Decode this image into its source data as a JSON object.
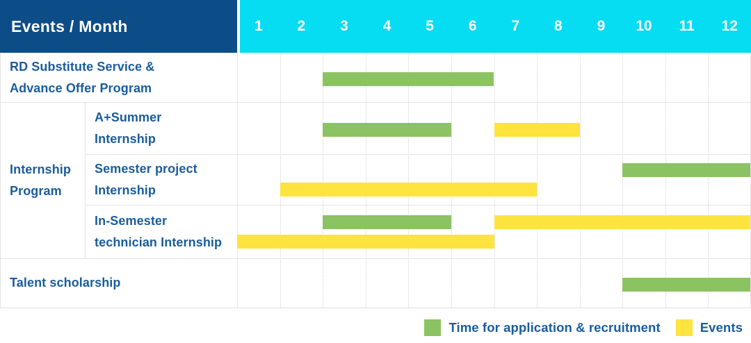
{
  "table": {
    "corner_label": "Events / Month",
    "months": [
      "1",
      "2",
      "3",
      "4",
      "5",
      "6",
      "7",
      "8",
      "9",
      "10",
      "11",
      "12"
    ]
  },
  "colors": {
    "header_bg": "#0d4d87",
    "months_bg": "#06dcf2",
    "header_text": "#ffffff",
    "label_text": "#1a5c9e",
    "grid_solid": "#e3e3e3",
    "grid_dotted": "#d2d2d2",
    "recruitment": "#8bc363",
    "events": "#ffe33e"
  },
  "legend": {
    "items": [
      {
        "key": "recruitment",
        "label": "Time for application & recruitment"
      },
      {
        "key": "events",
        "label": "Events"
      }
    ]
  },
  "chart_data": {
    "type": "gantt",
    "unit": "month",
    "x_domain": [
      1,
      12
    ],
    "x_ticks": [
      "1",
      "2",
      "3",
      "4",
      "5",
      "6",
      "7",
      "8",
      "9",
      "10",
      "11",
      "12"
    ],
    "series": [
      {
        "key": "recruitment",
        "label": "Time for application & recruitment",
        "color": "#8bc363"
      },
      {
        "key": "events",
        "label": "Events",
        "color": "#ffe33e"
      }
    ],
    "group_label_lines": [
      "Internship",
      "Program"
    ],
    "rows": [
      {
        "id": "rd-substitute",
        "group": null,
        "label_lines": [
          "RD Substitute Service &",
          "Advance Offer Program"
        ],
        "bars": [
          {
            "series": "recruitment",
            "start_month": 3,
            "end_month": 6,
            "lane": "single"
          }
        ]
      },
      {
        "id": "a-plus-summer",
        "group": "Internship Program",
        "label_lines": [
          "A+Summer",
          "Internship"
        ],
        "bars": [
          {
            "series": "recruitment",
            "start_month": 3,
            "end_month": 5,
            "lane": "single"
          },
          {
            "series": "events",
            "start_month": 7,
            "end_month": 8,
            "lane": "single"
          }
        ]
      },
      {
        "id": "semester-project",
        "group": "Internship Program",
        "label_lines": [
          "Semester project",
          "Internship"
        ],
        "bars": [
          {
            "series": "recruitment",
            "start_month": 10,
            "end_month": 12,
            "lane": "upper"
          },
          {
            "series": "events",
            "start_month": 2,
            "end_month": 7,
            "lane": "lower"
          }
        ]
      },
      {
        "id": "in-semester-technician",
        "group": "Internship Program",
        "label_lines": [
          "In-Semester",
          "technician Internship"
        ],
        "bars": [
          {
            "series": "recruitment",
            "start_month": 3,
            "end_month": 5,
            "lane": "upper"
          },
          {
            "series": "events",
            "start_month": 7,
            "end_month": 12,
            "lane": "upper"
          },
          {
            "series": "events",
            "start_month": 1,
            "end_month": 6,
            "lane": "lower"
          }
        ]
      },
      {
        "id": "talent-scholarship",
        "group": null,
        "label_lines": [
          "Talent scholarship"
        ],
        "bars": [
          {
            "series": "recruitment",
            "start_month": 10,
            "end_month": 12,
            "lane": "single"
          }
        ]
      }
    ]
  }
}
